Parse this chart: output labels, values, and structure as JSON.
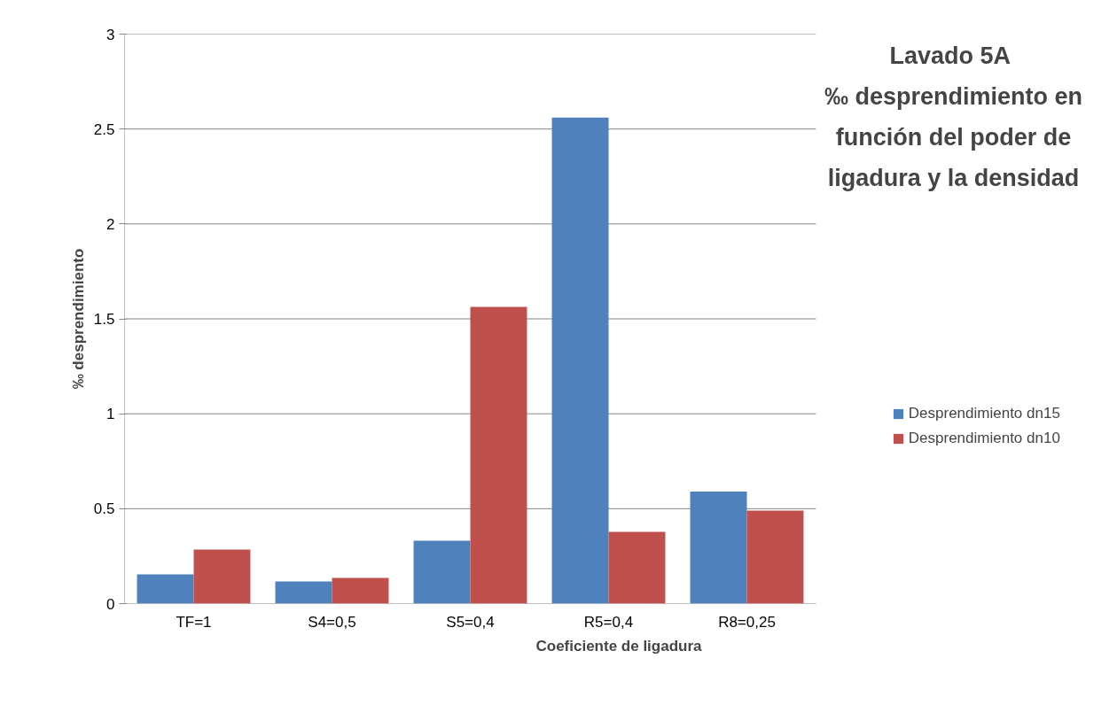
{
  "chart_data": {
    "type": "bar",
    "title": "Lavado  5A\n‰ desprendimiento en\nfunción del poder de\nligadura y la densidad",
    "xlabel": "Coeficiente de ligadura",
    "ylabel": "‰ desprendimiento",
    "categories": [
      "TF=1",
      "S4=0,5",
      "S5=0,4",
      "R5=0,4",
      "R8=0,25"
    ],
    "series": [
      {
        "name": "Desprendimiento dn15",
        "color": "#4f81bd",
        "values": [
          0.154,
          0.117,
          0.331,
          2.56,
          0.59
        ]
      },
      {
        "name": "Desprendimiento dn10",
        "color": "#c0504d",
        "values": [
          0.285,
          0.135,
          1.563,
          0.378,
          0.49
        ]
      }
    ],
    "ylim": [
      0,
      3
    ],
    "yticks": [
      0,
      0.5,
      1,
      1.5,
      2,
      2.5,
      3
    ],
    "grid": "y",
    "legend": "right"
  }
}
